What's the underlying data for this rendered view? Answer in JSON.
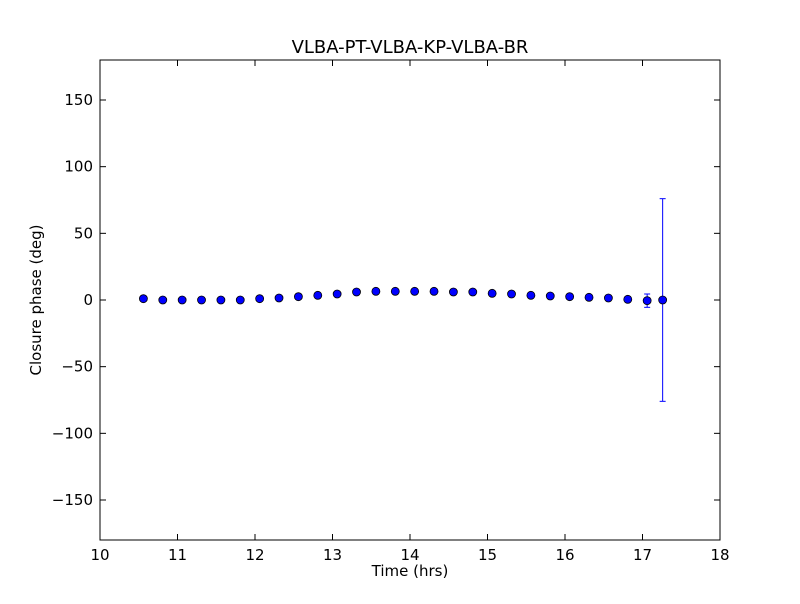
{
  "chart_data": {
    "type": "scatter",
    "title": "VLBA-PT-VLBA-KP-VLBA-BR",
    "xlabel": "Time (hrs)",
    "ylabel": "Closure phase (deg)",
    "xlim": [
      10,
      18
    ],
    "ylim": [
      -180,
      180
    ],
    "xticks": [
      10,
      11,
      12,
      13,
      14,
      15,
      16,
      17,
      18
    ],
    "xtick_labels": [
      "10",
      "11",
      "12",
      "13",
      "14",
      "15",
      "16",
      "17",
      "18"
    ],
    "yticks": [
      -150,
      -100,
      -50,
      0,
      50,
      100,
      150
    ],
    "ytick_labels": [
      "−150",
      "−100",
      "−50",
      "0",
      "50",
      "100",
      "150"
    ],
    "grid": false,
    "marker_color": "#0000ff",
    "errorbar_color": "#0000ff",
    "series": [
      {
        "x": [
          10.56,
          10.81,
          11.06,
          11.31,
          11.56,
          11.81,
          12.06,
          12.31,
          12.56,
          12.81,
          13.06,
          13.31,
          13.56,
          13.81,
          14.06,
          14.31,
          14.56,
          14.81,
          15.06,
          15.31,
          15.56,
          15.81,
          16.06,
          16.31,
          16.56,
          16.81,
          17.06,
          17.26
        ],
        "y": [
          1,
          0,
          0,
          0,
          0,
          0,
          1,
          1.5,
          2.5,
          3.5,
          4.5,
          6,
          6.5,
          6.5,
          6.5,
          6.5,
          6,
          6,
          5,
          4.5,
          3.5,
          3,
          2.5,
          2,
          1.5,
          0.5,
          -0.5,
          0
        ],
        "yerr": [
          1,
          1,
          1,
          1,
          1,
          1,
          1,
          1,
          1,
          1,
          1,
          1,
          1,
          1,
          1,
          1,
          1,
          1,
          1,
          1,
          1,
          1,
          1,
          1,
          1,
          2,
          5,
          76
        ]
      }
    ]
  }
}
